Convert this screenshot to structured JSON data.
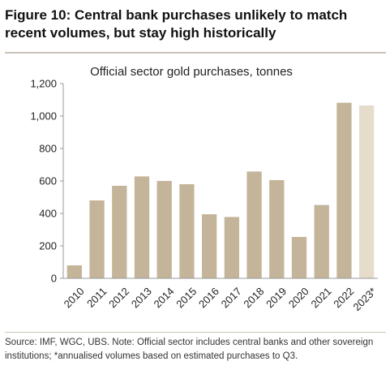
{
  "figure": {
    "title": "Figure 10: Central bank purchases unlikely to match recent volumes, but stay high historically",
    "source": "Source: IMF, WGC, UBS. Note: Official sector includes central banks and other sovereign institutions; *annualised volumes based on estimated purchases to Q3."
  },
  "chart_data": {
    "type": "bar",
    "title": "Official sector gold purchases, tonnes",
    "xlabel": "",
    "ylabel": "",
    "categories": [
      "2010",
      "2011",
      "2012",
      "2013",
      "2014",
      "2015",
      "2016",
      "2017",
      "2018",
      "2019",
      "2020",
      "2021",
      "2022",
      "2023*"
    ],
    "values": [
      80,
      480,
      570,
      628,
      600,
      580,
      395,
      378,
      658,
      605,
      255,
      452,
      1082,
      1065
    ],
    "ylim": [
      0,
      1200
    ],
    "yticks": [
      0,
      200,
      400,
      600,
      800,
      1000,
      1200
    ],
    "ytick_labels": [
      "0",
      "200",
      "400",
      "600",
      "800",
      "1,000",
      "1,200"
    ],
    "grid": false,
    "legend": "none",
    "colors": {
      "actual": "#c4b59a",
      "estimate": "#e6dccb",
      "axis": "#999999"
    },
    "estimated_category": "2023*"
  }
}
